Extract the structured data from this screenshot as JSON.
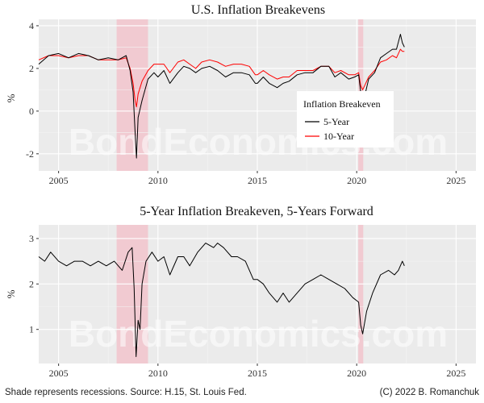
{
  "colors": {
    "panel_bg": "#ebebeb",
    "grid_major": "#ffffff",
    "grid_minor": "#f4f4f4",
    "recession": "#f2c4cc",
    "line_5y": "#000000",
    "line_10y": "#ff0000"
  },
  "watermark": "BondEconomics.com",
  "footer": {
    "left": "Shade represents recessions. Source: H.15, St. Louis Fed.",
    "right": "(C) 2022 B. Romanchuk"
  },
  "chart_data": [
    {
      "type": "line",
      "title": "U.S. Inflation Breakevens",
      "ylabel": "%",
      "xlabel": "",
      "xlim": [
        2004.0,
        2026.0
      ],
      "ylim": [
        -2.8,
        4.3
      ],
      "x_ticks": [
        2005,
        2010,
        2015,
        2020,
        2025
      ],
      "y_ticks": [
        -2,
        0,
        2,
        4
      ],
      "grid": true,
      "recessions": [
        [
          2007.92,
          2009.5
        ],
        [
          2020.08,
          2020.33
        ]
      ],
      "legend": {
        "title": "Inflation Breakeven",
        "placement": "middle-right",
        "entries": [
          "5-Year",
          "10-Year"
        ]
      },
      "series": [
        {
          "name": "5-Year",
          "x": [
            2004.0,
            2004.5,
            2005.0,
            2005.5,
            2006.0,
            2006.5,
            2007.0,
            2007.5,
            2008.0,
            2008.4,
            2008.6,
            2008.75,
            2008.85,
            2008.92,
            2009.0,
            2009.2,
            2009.5,
            2009.8,
            2010.0,
            2010.3,
            2010.6,
            2011.0,
            2011.3,
            2011.6,
            2011.9,
            2012.2,
            2012.6,
            2013.0,
            2013.4,
            2013.8,
            2014.2,
            2014.6,
            2014.9,
            2015.0,
            2015.3,
            2015.6,
            2016.0,
            2016.3,
            2016.6,
            2017.0,
            2017.4,
            2017.8,
            2018.2,
            2018.6,
            2018.9,
            2019.2,
            2019.6,
            2019.9,
            2020.1,
            2020.2,
            2020.3,
            2020.6,
            2020.9,
            2021.2,
            2021.5,
            2021.8,
            2022.0,
            2022.2,
            2022.3,
            2022.4
          ],
          "y": [
            2.2,
            2.6,
            2.7,
            2.5,
            2.7,
            2.6,
            2.4,
            2.5,
            2.4,
            2.6,
            1.9,
            0.9,
            -1.0,
            -2.2,
            -0.3,
            0.5,
            1.5,
            1.8,
            1.6,
            1.9,
            1.3,
            1.8,
            2.1,
            2.0,
            1.8,
            2.0,
            2.1,
            1.9,
            1.6,
            1.8,
            1.8,
            1.7,
            1.3,
            1.3,
            1.6,
            1.3,
            1.1,
            1.3,
            1.4,
            1.7,
            1.8,
            1.8,
            2.1,
            2.1,
            1.6,
            1.8,
            1.5,
            1.6,
            1.7,
            0.9,
            0.3,
            1.5,
            1.8,
            2.5,
            2.7,
            2.9,
            2.9,
            3.6,
            3.2,
            3.0
          ]
        },
        {
          "name": "10-Year",
          "x": [
            2004.0,
            2004.5,
            2005.0,
            2005.5,
            2006.0,
            2006.5,
            2007.0,
            2007.5,
            2008.0,
            2008.4,
            2008.6,
            2008.75,
            2008.85,
            2008.92,
            2009.0,
            2009.2,
            2009.5,
            2009.8,
            2010.0,
            2010.3,
            2010.6,
            2011.0,
            2011.3,
            2011.6,
            2011.9,
            2012.2,
            2012.6,
            2013.0,
            2013.4,
            2013.8,
            2014.2,
            2014.6,
            2014.9,
            2015.0,
            2015.3,
            2015.6,
            2016.0,
            2016.3,
            2016.6,
            2017.0,
            2017.4,
            2017.8,
            2018.2,
            2018.6,
            2018.9,
            2019.2,
            2019.6,
            2019.9,
            2020.1,
            2020.2,
            2020.3,
            2020.6,
            2020.9,
            2021.2,
            2021.5,
            2021.8,
            2022.0,
            2022.2,
            2022.3,
            2022.4
          ],
          "y": [
            2.4,
            2.6,
            2.6,
            2.5,
            2.6,
            2.6,
            2.4,
            2.4,
            2.4,
            2.5,
            2.0,
            1.3,
            0.5,
            0.2,
            0.8,
            1.4,
            1.9,
            2.2,
            2.2,
            2.2,
            1.8,
            2.3,
            2.4,
            2.2,
            2.0,
            2.3,
            2.4,
            2.3,
            2.1,
            2.2,
            2.2,
            2.1,
            1.7,
            1.7,
            1.9,
            1.7,
            1.5,
            1.6,
            1.6,
            1.9,
            1.9,
            1.9,
            2.1,
            2.1,
            1.8,
            1.9,
            1.7,
            1.7,
            1.8,
            1.2,
            1.0,
            1.6,
            1.9,
            2.3,
            2.4,
            2.6,
            2.5,
            2.9,
            2.8,
            2.8
          ]
        }
      ]
    },
    {
      "type": "line",
      "title": "5-Year Inflation Breakeven, 5-Years Forward",
      "ylabel": "%",
      "xlabel": "",
      "xlim": [
        2004.0,
        2026.0
      ],
      "ylim": [
        0.25,
        3.3
      ],
      "x_ticks": [
        2005,
        2010,
        2015,
        2020,
        2025
      ],
      "y_ticks": [
        1,
        2,
        3
      ],
      "grid": true,
      "recessions": [
        [
          2007.92,
          2009.5
        ],
        [
          2020.08,
          2020.33
        ]
      ],
      "series": [
        {
          "x": [
            2004.0,
            2004.3,
            2004.6,
            2005.0,
            2005.4,
            2005.8,
            2006.2,
            2006.6,
            2007.0,
            2007.4,
            2007.8,
            2008.2,
            2008.5,
            2008.7,
            2008.8,
            2008.9,
            2009.0,
            2009.1,
            2009.2,
            2009.4,
            2009.7,
            2010.0,
            2010.3,
            2010.6,
            2011.0,
            2011.3,
            2011.6,
            2012.0,
            2012.4,
            2012.8,
            2013.0,
            2013.3,
            2013.7,
            2014.0,
            2014.4,
            2014.8,
            2015.0,
            2015.3,
            2015.6,
            2016.0,
            2016.3,
            2016.6,
            2017.0,
            2017.4,
            2017.8,
            2018.2,
            2018.6,
            2019.0,
            2019.4,
            2019.8,
            2020.1,
            2020.2,
            2020.3,
            2020.5,
            2020.8,
            2021.2,
            2021.6,
            2021.9,
            2022.1,
            2022.3,
            2022.4
          ],
          "y": [
            2.6,
            2.5,
            2.7,
            2.5,
            2.4,
            2.5,
            2.5,
            2.4,
            2.5,
            2.4,
            2.5,
            2.3,
            2.7,
            2.8,
            1.9,
            0.4,
            1.2,
            1.0,
            2.0,
            2.5,
            2.7,
            2.5,
            2.6,
            2.2,
            2.6,
            2.6,
            2.4,
            2.7,
            2.9,
            2.8,
            2.9,
            2.8,
            2.6,
            2.6,
            2.5,
            2.1,
            2.1,
            2.0,
            1.8,
            1.6,
            1.8,
            1.6,
            1.8,
            2.0,
            2.1,
            2.2,
            2.1,
            2.0,
            1.9,
            1.7,
            1.6,
            1.1,
            0.9,
            1.4,
            1.8,
            2.2,
            2.3,
            2.2,
            2.3,
            2.5,
            2.4
          ]
        }
      ]
    }
  ]
}
